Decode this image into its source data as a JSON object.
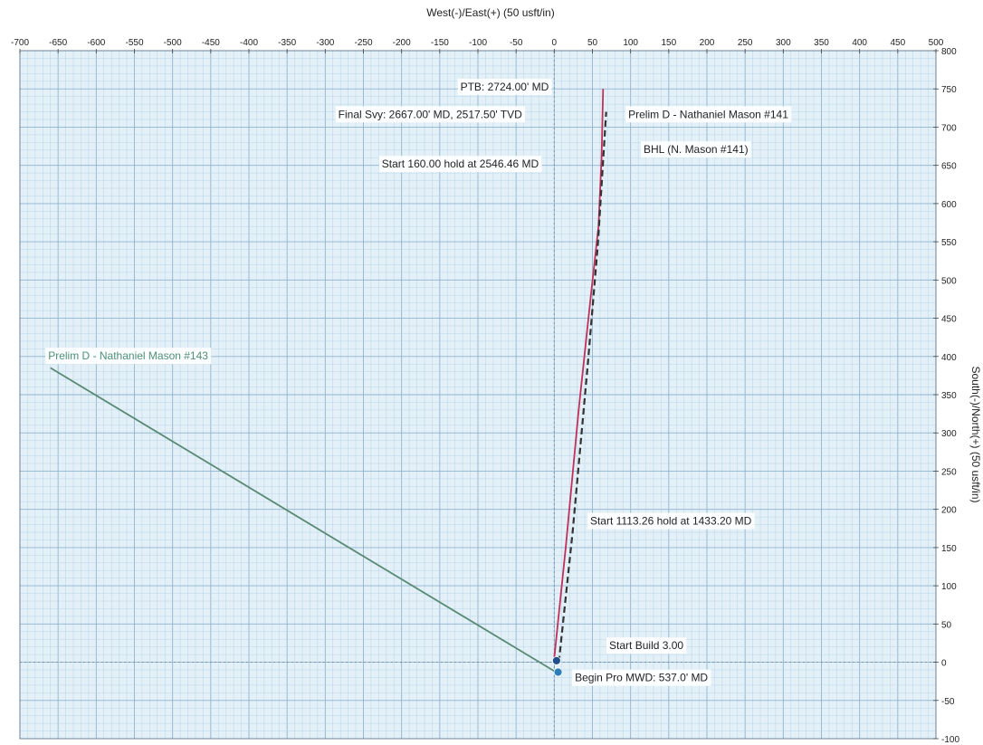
{
  "chart_data": {
    "type": "line",
    "title": "",
    "xlabel": "West(-)/East(+) (50 usft/in)",
    "ylabel": "South(-)/North(+) (50 usft/in)",
    "xlim": [
      -700,
      500
    ],
    "ylim": [
      -100,
      800
    ],
    "x_ticks": [
      -700,
      -650,
      -600,
      -550,
      -500,
      -450,
      -400,
      -350,
      -300,
      -250,
      -200,
      -150,
      -100,
      -50,
      0,
      50,
      100,
      150,
      200,
      250,
      300,
      350,
      400,
      450,
      500
    ],
    "y_ticks": [
      800,
      750,
      700,
      650,
      600,
      550,
      500,
      450,
      400,
      350,
      300,
      250,
      200,
      150,
      100,
      50,
      0,
      -50,
      -100
    ],
    "grid": true,
    "colors": {
      "background": "#e3f0f8",
      "grid_minor": "#b9d4e6",
      "grid_major": "#8fb4cf",
      "plan": "#5a8a73",
      "actual": "#c0305a",
      "proposal": "#333333",
      "marker": "#2a7fb8"
    },
    "series": [
      {
        "key": "mason143",
        "style": "solid",
        "color": "#5a8a73",
        "x": [
          4,
          -660
        ],
        "y": [
          -14,
          385
        ]
      },
      {
        "key": "actual",
        "style": "solid",
        "color": "#c0305a",
        "x": [
          0,
          15,
          32,
          48,
          58,
          62,
          64
        ],
        "y": [
          5,
          150,
          330,
          480,
          570,
          660,
          750
        ]
      },
      {
        "key": "proposal",
        "style": "dashed",
        "color": "#333333",
        "x": [
          6,
          24,
          44,
          57,
          68
        ],
        "y": [
          0,
          170,
          390,
          545,
          720
        ]
      }
    ],
    "markers": [
      {
        "x": 3,
        "y": 2,
        "color": "#1e4e8c"
      },
      {
        "x": 5,
        "y": -13,
        "color": "#2a7fb8"
      }
    ],
    "annotations": [
      {
        "text": "PTB: 2724.00' MD",
        "x": -123,
        "y": 748,
        "color": "#222222"
      },
      {
        "text": "Final Svy: 2667.00' MD, 2517.50' TVD",
        "x": -283,
        "y": 712,
        "color": "#222222"
      },
      {
        "text": "Prelim D - Nathaniel Mason #141",
        "x": 97,
        "y": 712,
        "color": "#222222"
      },
      {
        "text": "BHL (N. Mason #141)",
        "x": 117,
        "y": 666,
        "color": "#222222"
      },
      {
        "text": "Start 160.00 hold at 2546.46 MD",
        "x": -226,
        "y": 647,
        "color": "#222222"
      },
      {
        "text": "Prelim D - Nathaniel Mason #143",
        "x": -663,
        "y": 396,
        "color": "#4f8f76"
      },
      {
        "text": "Start 1113.26 hold at 1433.20 MD",
        "x": 47,
        "y": 180,
        "color": "#222222"
      },
      {
        "text": "Start Build 3.00",
        "x": 72,
        "y": 17,
        "color": "#222222"
      },
      {
        "text": "Begin Pro MWD: 537.0' MD",
        "x": 27,
        "y": -25,
        "color": "#222222"
      }
    ]
  }
}
